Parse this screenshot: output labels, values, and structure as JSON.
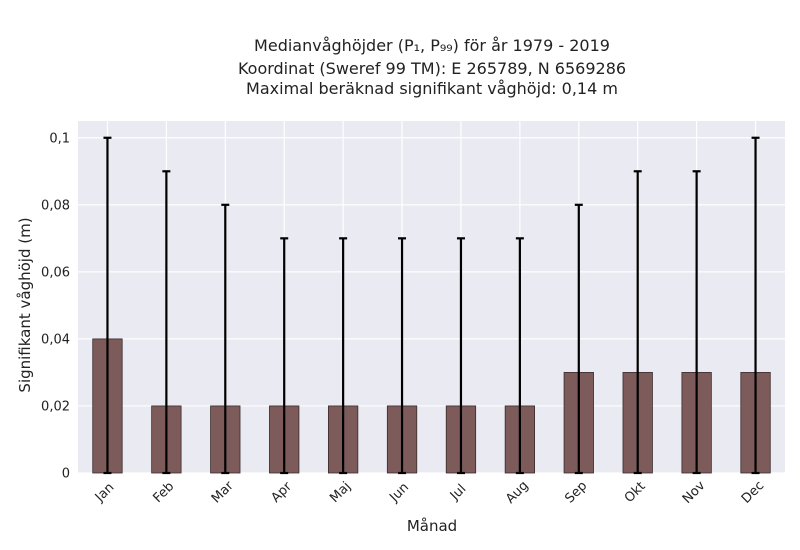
{
  "chart_data": {
    "type": "bar",
    "title_lines": [
      "Medianvåghöjder (P₁, P₉₉) för år 1979 - 2019",
      "Koordinat (Sweref 99 TM): E 265789, N 6569286",
      "Maximal beräknad signifikant våghöjd: 0,14 m"
    ],
    "xlabel": "Månad",
    "ylabel": "Signifikant våghöjd (m)",
    "categories": [
      "Jan",
      "Feb",
      "Mar",
      "Apr",
      "Maj",
      "Jun",
      "Jul",
      "Aug",
      "Sep",
      "Okt",
      "Nov",
      "Dec"
    ],
    "values": [
      0.04,
      0.02,
      0.02,
      0.02,
      0.02,
      0.02,
      0.02,
      0.02,
      0.03,
      0.03,
      0.03,
      0.03
    ],
    "err_low": [
      0,
      0,
      0,
      0,
      0,
      0,
      0,
      0,
      0,
      0,
      0,
      0
    ],
    "err_high": [
      0.1,
      0.09,
      0.08,
      0.07,
      0.07,
      0.07,
      0.07,
      0.07,
      0.08,
      0.09,
      0.09,
      0.1
    ],
    "ylim": [
      0,
      0.105
    ],
    "yticks": [
      0,
      0.02,
      0.04,
      0.06,
      0.08,
      0.1
    ],
    "ytick_labels": [
      "0",
      "0,02",
      "0,04",
      "0,06",
      "0,08",
      "0,1"
    ],
    "grid": true,
    "colors": {
      "bar": "#7d5b5b",
      "bar_edge": "#3a2b2b",
      "error": "#000000",
      "plot_bg": "#eaeaf2",
      "grid": "#ffffff"
    }
  }
}
